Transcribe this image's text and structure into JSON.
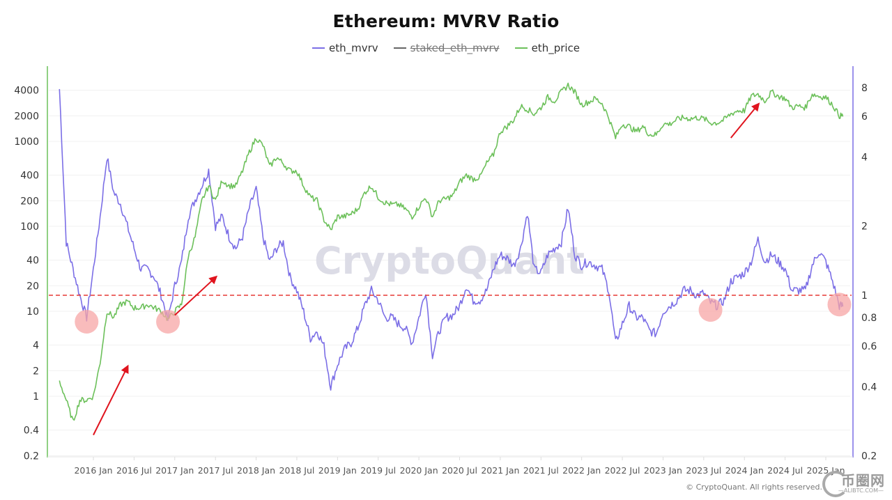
{
  "chart_data": {
    "type": "line",
    "title": "Ethereum: MVRV Ratio",
    "legend": [
      {
        "name": "eth_mvrv",
        "color": "#7b6ee6",
        "enabled": true
      },
      {
        "name": "staked_eth_mvrv",
        "color": "#666666",
        "enabled": false
      },
      {
        "name": "eth_price",
        "color": "#6cc05a",
        "enabled": true
      }
    ],
    "legend_position": "top-center",
    "x_ticks": [
      "2016 Jan",
      "2016 Jul",
      "2017 Jan",
      "2017 Jul",
      "2018 Jan",
      "2018 Jul",
      "2019 Jan",
      "2019 Jul",
      "2020 Jan",
      "2020 Jul",
      "2021 Jan",
      "2021 Jul",
      "2022 Jan",
      "2022 Jul",
      "2023 Jan",
      "2023 Jul",
      "2024 Jan",
      "2024 Jul",
      "2025 Jan"
    ],
    "x_range": [
      "2015-08",
      "2025-03"
    ],
    "y_left": {
      "label": "eth_price",
      "scale": "log",
      "ticks": [
        "4000",
        "2000",
        "1000",
        "400",
        "200",
        "100",
        "40",
        "20",
        "10",
        "4",
        "2",
        "1",
        "0.4",
        "0.2"
      ],
      "range": [
        0.2,
        5500
      ]
    },
    "y_right": {
      "label": "eth_mvrv",
      "scale": "log",
      "ticks": [
        "8",
        "6",
        "4",
        "2",
        "1",
        "0.8",
        "0.6",
        "0.4",
        "0.2"
      ],
      "range": [
        0.2,
        9
      ]
    },
    "x": [
      "2015-08",
      "2015-09",
      "2015-10",
      "2015-11",
      "2015-12",
      "2016-01",
      "2016-02",
      "2016-03",
      "2016-04",
      "2016-05",
      "2016-06",
      "2016-07",
      "2016-08",
      "2016-09",
      "2016-10",
      "2016-11",
      "2016-12",
      "2017-01",
      "2017-02",
      "2017-03",
      "2017-04",
      "2017-05",
      "2017-06",
      "2017-07",
      "2017-08",
      "2017-09",
      "2017-10",
      "2017-11",
      "2017-12",
      "2018-01",
      "2018-02",
      "2018-03",
      "2018-04",
      "2018-05",
      "2018-06",
      "2018-07",
      "2018-08",
      "2018-09",
      "2018-10",
      "2018-11",
      "2018-12",
      "2019-01",
      "2019-02",
      "2019-03",
      "2019-04",
      "2019-05",
      "2019-06",
      "2019-07",
      "2019-08",
      "2019-09",
      "2019-10",
      "2019-11",
      "2019-12",
      "2020-01",
      "2020-02",
      "2020-03",
      "2020-04",
      "2020-05",
      "2020-06",
      "2020-07",
      "2020-08",
      "2020-09",
      "2020-10",
      "2020-11",
      "2020-12",
      "2021-01",
      "2021-02",
      "2021-03",
      "2021-04",
      "2021-05",
      "2021-06",
      "2021-07",
      "2021-08",
      "2021-09",
      "2021-10",
      "2021-11",
      "2021-12",
      "2022-01",
      "2022-02",
      "2022-03",
      "2022-04",
      "2022-05",
      "2022-06",
      "2022-07",
      "2022-08",
      "2022-09",
      "2022-10",
      "2022-11",
      "2022-12",
      "2023-01",
      "2023-02",
      "2023-03",
      "2023-04",
      "2023-05",
      "2023-06",
      "2023-07",
      "2023-08",
      "2023-09",
      "2023-10",
      "2023-11",
      "2023-12",
      "2024-01",
      "2024-02",
      "2024-03",
      "2024-04",
      "2024-05",
      "2024-06",
      "2024-07",
      "2024-08",
      "2024-09",
      "2024-10",
      "2024-11",
      "2024-12",
      "2025-01",
      "2025-02",
      "2025-03"
    ],
    "series": [
      {
        "name": "eth_mvrv",
        "axis": "right",
        "values": [
          7.9,
          1.7,
          1.3,
          1.0,
          0.8,
          1.3,
          2.2,
          4.0,
          2.8,
          2.5,
          2.0,
          1.6,
          1.3,
          1.3,
          1.2,
          1.0,
          0.78,
          1.1,
          1.4,
          2.2,
          2.6,
          3.0,
          3.5,
          2.0,
          2.2,
          1.8,
          1.6,
          1.8,
          2.4,
          2.9,
          1.8,
          1.4,
          1.6,
          1.7,
          1.2,
          1.05,
          0.85,
          0.65,
          0.7,
          0.6,
          0.4,
          0.5,
          0.58,
          0.62,
          0.72,
          0.9,
          1.05,
          0.95,
          0.8,
          0.8,
          0.75,
          0.72,
          0.62,
          0.8,
          1.05,
          0.55,
          0.7,
          0.8,
          0.82,
          0.9,
          1.1,
          0.95,
          0.95,
          1.05,
          1.3,
          1.5,
          1.45,
          1.35,
          1.6,
          2.3,
          1.3,
          1.25,
          1.5,
          1.6,
          1.7,
          2.4,
          1.5,
          1.35,
          1.4,
          1.35,
          1.3,
          1.05,
          0.62,
          0.75,
          0.9,
          0.8,
          0.8,
          0.7,
          0.68,
          0.85,
          0.9,
          0.95,
          1.05,
          1.05,
          1.0,
          1.02,
          0.93,
          0.9,
          0.95,
          1.15,
          1.2,
          1.25,
          1.4,
          1.75,
          1.4,
          1.5,
          1.4,
          1.3,
          1.05,
          1.05,
          1.05,
          1.35,
          1.55,
          1.4,
          1.15,
          0.9
        ]
      },
      {
        "name": "eth_price",
        "axis": "left",
        "values": [
          1.5,
          0.9,
          0.5,
          0.9,
          0.9,
          1.0,
          2.5,
          10,
          8.5,
          12,
          13,
          11,
          11,
          12,
          11,
          10,
          8,
          10,
          12,
          45,
          75,
          200,
          300,
          200,
          350,
          300,
          300,
          450,
          750,
          1100,
          900,
          500,
          650,
          550,
          450,
          450,
          300,
          220,
          200,
          120,
          90,
          130,
          130,
          140,
          160,
          250,
          300,
          220,
          190,
          180,
          180,
          160,
          130,
          170,
          220,
          130,
          200,
          210,
          230,
          330,
          400,
          360,
          380,
          550,
          700,
          1300,
          1500,
          1800,
          2600,
          2400,
          2100,
          2500,
          3300,
          3000,
          3800,
          4600,
          3800,
          2700,
          2900,
          3200,
          2800,
          1900,
          1100,
          1600,
          1500,
          1300,
          1500,
          1200,
          1200,
          1600,
          1600,
          1800,
          1900,
          1850,
          1900,
          1850,
          1650,
          1650,
          1800,
          2100,
          2300,
          2300,
          3400,
          3600,
          3000,
          3800,
          3400,
          3200,
          2500,
          2600,
          2500,
          3600,
          3400,
          3300,
          2700,
          2000
        ]
      },
      {
        "name": "staked_eth_mvrv",
        "axis": "right",
        "values": []
      }
    ],
    "annotations": {
      "reference_line": {
        "axis": "right",
        "value": 1.0,
        "color": "#e53935",
        "style": "dashed"
      },
      "highlight_circles": [
        {
          "x": "2015-12",
          "axis": "right",
          "value": 0.8
        },
        {
          "x": "2016-12",
          "axis": "right",
          "value": 0.8
        },
        {
          "x": "2023-08",
          "axis": "right",
          "value": 0.9
        },
        {
          "x": "2025-03",
          "axis": "right",
          "value": 0.95
        }
      ],
      "arrows": [
        {
          "from": [
            "2016-01",
            0.35
          ],
          "to": [
            "2016-06",
            2.2
          ],
          "axis": "left"
        },
        {
          "from": [
            "2017-01",
            9
          ],
          "to": [
            "2017-07",
            25
          ],
          "axis": "left"
        },
        {
          "from": [
            "2023-11",
            1100
          ],
          "to": [
            "2024-03",
            2700
          ],
          "axis": "left"
        }
      ],
      "circle_color": "#f7a6a6",
      "arrow_color": "#e0141e"
    },
    "watermark": "CryptoQuant",
    "grid": true
  },
  "footer": {
    "copyright": "© CryptoQuant. All rights reserved.",
    "site_cn": "币圈网",
    "site_en": "—ALIBTC.COM—"
  }
}
